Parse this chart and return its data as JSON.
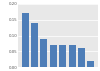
{
  "values": [
    0.17,
    0.14,
    0.09,
    0.07,
    0.07,
    0.07,
    0.06,
    0.02
  ],
  "bar_color": "#4e7eb8",
  "background_color": "#ffffff",
  "plot_bg_color": "#e8e8e8",
  "ylim": [
    0,
    0.2
  ],
  "yticks": [
    0.0,
    0.05,
    0.1,
    0.15,
    0.2
  ],
  "ytick_labels": [
    "0.00",
    "0.05",
    "0.10",
    "0.15",
    "0.20"
  ],
  "grid_color": "#ffffff",
  "tick_color": "#555555",
  "tick_fontsize": 2.8
}
